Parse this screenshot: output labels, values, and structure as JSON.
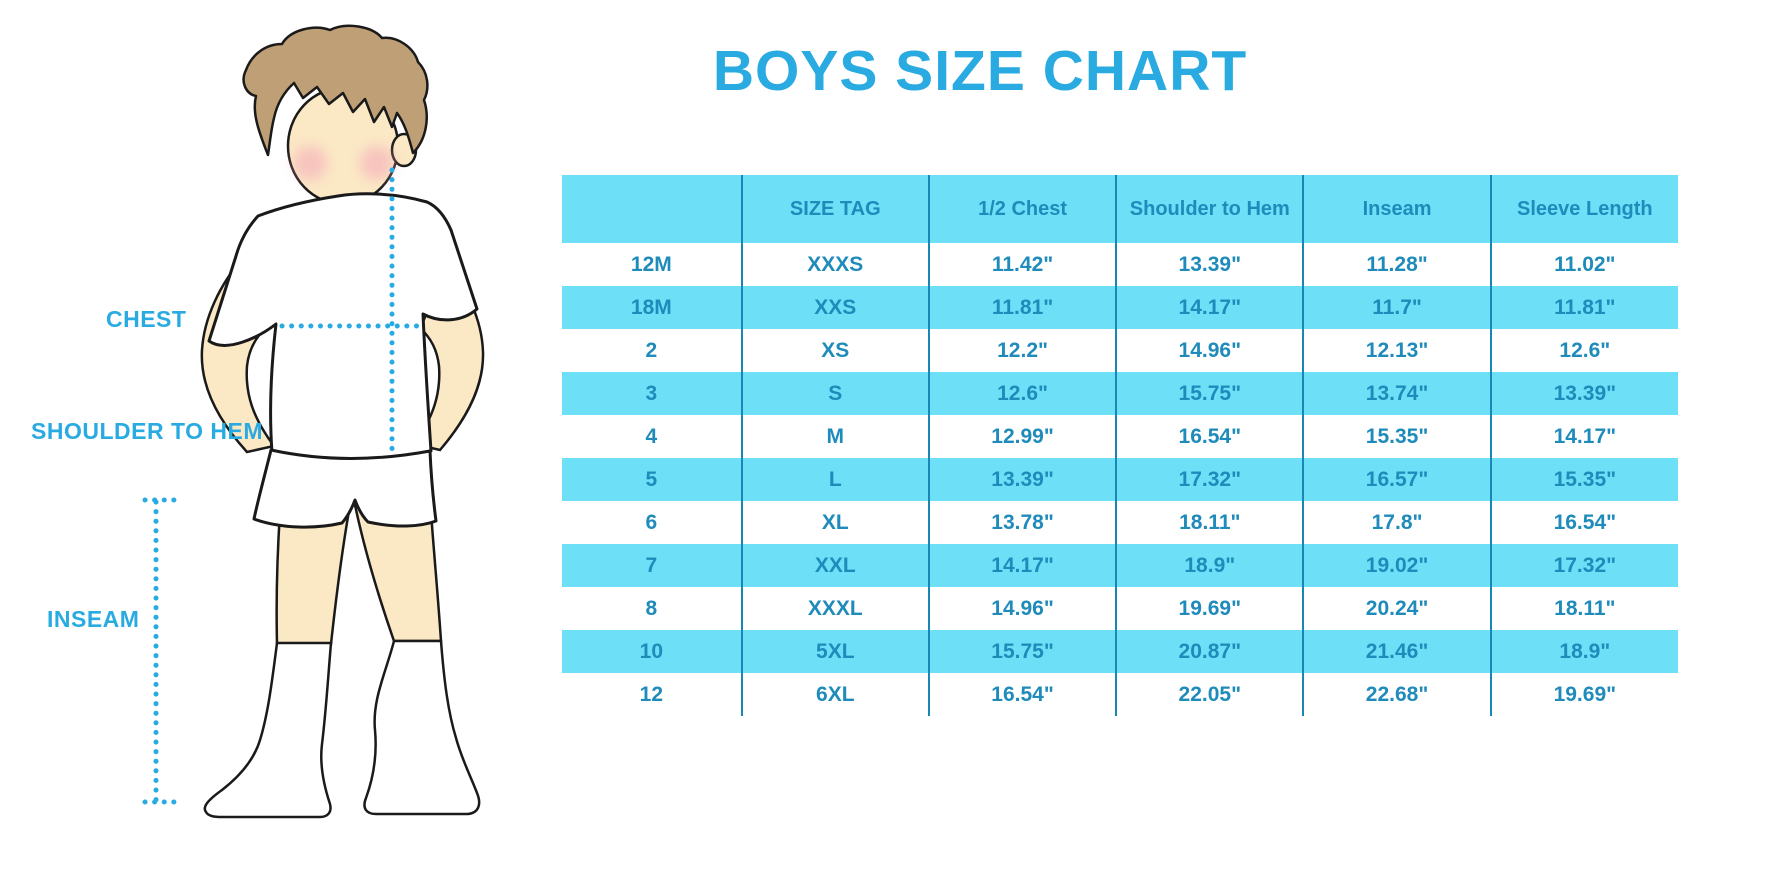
{
  "title": "BOYS SIZE CHART",
  "figure": {
    "description": "outline illustration of a boy in white t-shirt, shorts and knee socks with measurement guides",
    "labels": {
      "chest": "CHEST",
      "shoulder_to_hem": "SHOULDER TO HEM",
      "inseam": "INSEAM"
    }
  },
  "colors": {
    "accent_blue": "#29ABE2",
    "table_stripe_blue": "#6DE0F8",
    "table_text_blue": "#1E8BBA",
    "table_divider_blue": "#1887B5",
    "hair_brown": "#BFA076",
    "skin": "#FBE8C5",
    "cheek_pink": "#F4A7B9"
  },
  "size_table": {
    "columns": [
      "",
      "SIZE TAG",
      "1/2 Chest",
      "Shoulder to Hem",
      "Inseam",
      "Sleeve Length"
    ],
    "rows": [
      [
        "12M",
        "XXXS",
        "11.42\"",
        "13.39\"",
        "11.28\"",
        "11.02\""
      ],
      [
        "18M",
        "XXS",
        "11.81\"",
        "14.17\"",
        "11.7\"",
        "11.81\""
      ],
      [
        "2",
        "XS",
        "12.2\"",
        "14.96\"",
        "12.13\"",
        "12.6\""
      ],
      [
        "3",
        "S",
        "12.6\"",
        "15.75\"",
        "13.74\"",
        "13.39\""
      ],
      [
        "4",
        "M",
        "12.99\"",
        "16.54\"",
        "15.35\"",
        "14.17\""
      ],
      [
        "5",
        "L",
        "13.39\"",
        "17.32\"",
        "16.57\"",
        "15.35\""
      ],
      [
        "6",
        "XL",
        "13.78\"",
        "18.11\"",
        "17.8\"",
        "16.54\""
      ],
      [
        "7",
        "XXL",
        "14.17\"",
        "18.9\"",
        "19.02\"",
        "17.32\""
      ],
      [
        "8",
        "XXXL",
        "14.96\"",
        "19.69\"",
        "20.24\"",
        "18.11\""
      ],
      [
        "10",
        "5XL",
        "15.75\"",
        "20.87\"",
        "21.46\"",
        "18.9\""
      ],
      [
        "12",
        "6XL",
        "16.54\"",
        "22.05\"",
        "22.68\"",
        "19.69\""
      ]
    ]
  }
}
